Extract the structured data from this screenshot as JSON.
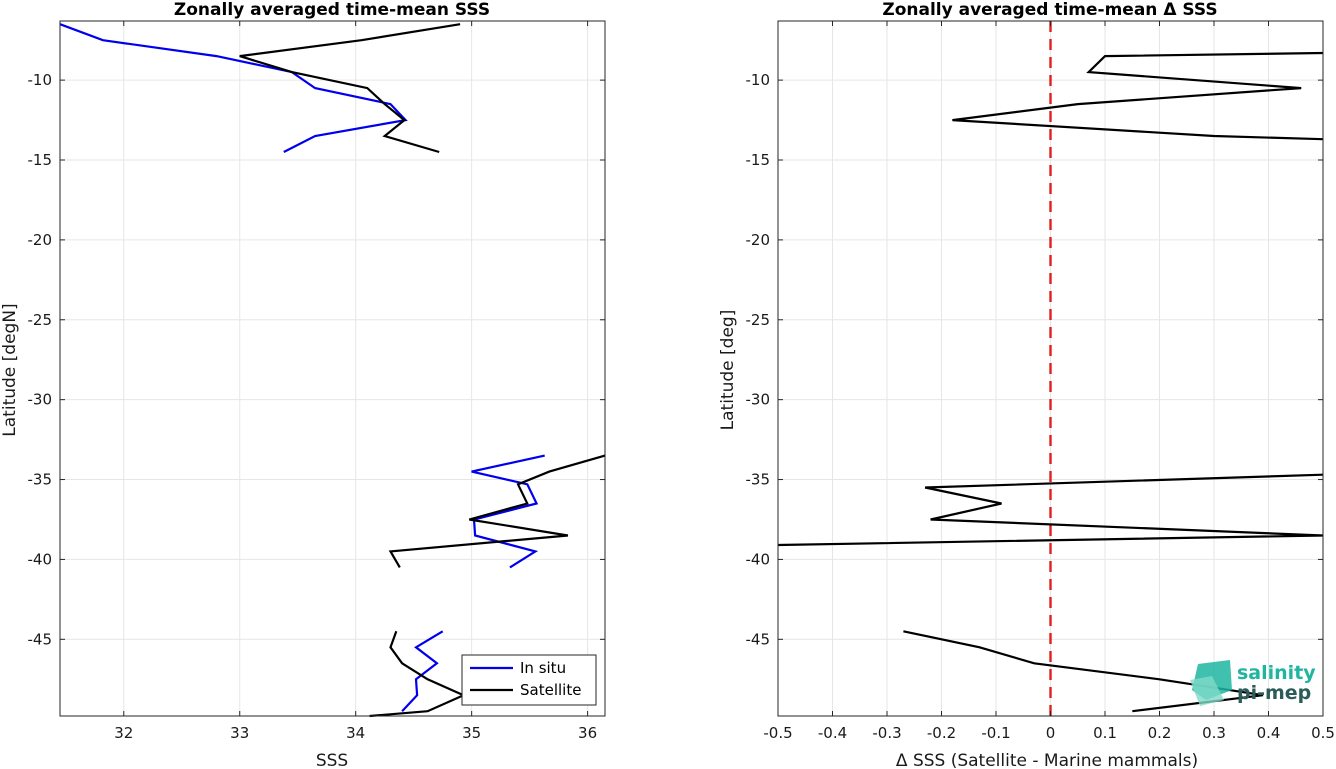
{
  "colors": {
    "in_situ": "#0000ee",
    "satellite": "#000000",
    "zero_line": "#e02020",
    "grid": "#e6e6e6",
    "logo_teal": "#1fb5a0",
    "logo_dark": "#2a5c58"
  },
  "chart_data": [
    {
      "type": "line",
      "title": "Zonally averaged time-mean SSS",
      "xlabel": "SSS",
      "ylabel": "Latitude [degN]",
      "xlim": [
        31.45,
        36.15
      ],
      "ylim": [
        -49.8,
        -6.3
      ],
      "xticks": [
        32,
        33,
        34,
        35,
        36
      ],
      "yticks": [
        -10,
        -15,
        -20,
        -25,
        -30,
        -35,
        -40,
        -45
      ],
      "grid": true,
      "legend_position": "bottom-right",
      "series": [
        {
          "name": "In situ",
          "color": "#0000ee",
          "segments": [
            [
              [
                31.45,
                -6.5
              ],
              [
                31.82,
                -7.5
              ],
              [
                32.8,
                -8.5
              ],
              [
                33.45,
                -9.5
              ],
              [
                33.65,
                -10.5
              ],
              [
                34.3,
                -11.5
              ],
              [
                34.43,
                -12.5
              ],
              [
                33.65,
                -13.5
              ],
              [
                33.38,
                -14.5
              ]
            ],
            [
              [
                35.63,
                -33.5
              ],
              [
                35.0,
                -34.5
              ],
              [
                35.48,
                -35.3
              ],
              [
                35.56,
                -36.5
              ],
              [
                35.02,
                -37.5
              ],
              [
                35.03,
                -38.5
              ],
              [
                35.55,
                -39.5
              ],
              [
                35.33,
                -40.5
              ]
            ],
            [
              [
                34.75,
                -44.5
              ],
              [
                34.52,
                -45.5
              ],
              [
                34.7,
                -46.5
              ],
              [
                34.52,
                -47.5
              ],
              [
                34.53,
                -48.5
              ],
              [
                34.4,
                -49.5
              ]
            ]
          ]
        },
        {
          "name": "Satellite",
          "color": "#000000",
          "segments": [
            [
              [
                34.9,
                -6.5
              ],
              [
                34.05,
                -7.5
              ],
              [
                33.0,
                -8.5
              ],
              [
                33.45,
                -9.5
              ],
              [
                34.1,
                -10.5
              ],
              [
                34.25,
                -11.5
              ],
              [
                34.42,
                -12.5
              ],
              [
                34.25,
                -13.5
              ],
              [
                34.72,
                -14.5
              ]
            ],
            [
              [
                36.15,
                -33.5
              ],
              [
                35.67,
                -34.5
              ],
              [
                35.4,
                -35.3
              ],
              [
                35.48,
                -36.5
              ],
              [
                34.98,
                -37.5
              ],
              [
                35.83,
                -38.5
              ],
              [
                34.3,
                -39.5
              ],
              [
                34.38,
                -40.5
              ]
            ],
            [
              [
                34.35,
                -44.5
              ],
              [
                34.3,
                -45.5
              ],
              [
                34.4,
                -46.5
              ],
              [
                34.62,
                -47.5
              ],
              [
                34.93,
                -48.5
              ],
              [
                34.62,
                -49.5
              ],
              [
                34.12,
                -49.8
              ]
            ]
          ]
        }
      ]
    },
    {
      "type": "line",
      "title": "Zonally averaged time-mean Δ SSS",
      "xlabel": "Δ SSS (Satellite - Marine mammals)",
      "ylabel": "Latitude [deg]",
      "xlim": [
        -0.5,
        0.5
      ],
      "ylim": [
        -49.8,
        -6.3
      ],
      "xticks": [
        -0.5,
        -0.4,
        -0.3,
        -0.2,
        -0.1,
        0,
        0.1,
        0.2,
        0.3,
        0.4,
        0.5
      ],
      "xtick_labels": [
        "-0.5",
        "-0.4",
        "-0.3",
        "-0.2",
        "-0.1",
        "0",
        "0.1",
        "0.2",
        "0.3",
        "0.4",
        "0.5"
      ],
      "yticks": [
        -10,
        -15,
        -20,
        -25,
        -30,
        -35,
        -40,
        -45
      ],
      "grid": true,
      "reference_line": {
        "x": 0,
        "color": "#e02020",
        "style": "dashed"
      },
      "series": [
        {
          "color": "#000000",
          "segments": [
            [
              [
                0.5,
                -8.3
              ],
              [
                0.1,
                -8.5
              ],
              [
                0.07,
                -9.5
              ],
              [
                0.46,
                -10.5
              ],
              [
                0.05,
                -11.5
              ],
              [
                -0.18,
                -12.5
              ],
              [
                0.3,
                -13.5
              ],
              [
                0.5,
                -13.7
              ]
            ],
            [
              [
                0.5,
                -34.7
              ],
              [
                -0.23,
                -35.5
              ],
              [
                -0.09,
                -36.5
              ],
              [
                -0.22,
                -37.5
              ],
              [
                0.5,
                -38.5
              ],
              [
                -0.5,
                -39.1
              ]
            ],
            [
              [
                -0.27,
                -44.5
              ],
              [
                -0.13,
                -45.5
              ],
              [
                -0.03,
                -46.5
              ],
              [
                0.2,
                -47.5
              ],
              [
                0.39,
                -48.5
              ],
              [
                0.15,
                -49.5
              ]
            ]
          ]
        }
      ]
    }
  ],
  "legend": {
    "items": [
      {
        "label": "In situ"
      },
      {
        "label": "Satellite"
      }
    ]
  },
  "logo": {
    "line1": "salinity",
    "line2": "pi-mep"
  }
}
